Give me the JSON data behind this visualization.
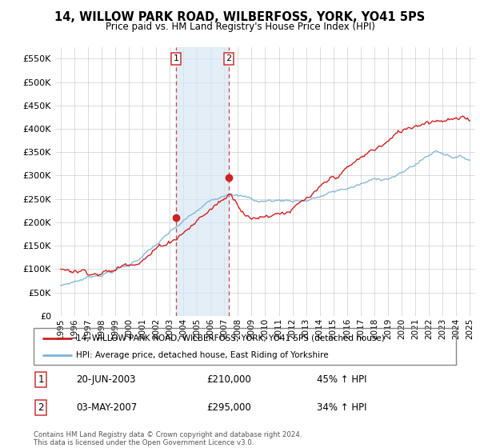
{
  "title": "14, WILLOW PARK ROAD, WILBERFOSS, YORK, YO41 5PS",
  "subtitle": "Price paid vs. HM Land Registry's House Price Index (HPI)",
  "legend_line1": "14, WILLOW PARK ROAD, WILBERFOSS, YORK, YO41 5PS (detached house)",
  "legend_line2": "HPI: Average price, detached house, East Riding of Yorkshire",
  "transaction1_date": "20-JUN-2003",
  "transaction1_price": "£210,000",
  "transaction1_hpi": "45% ↑ HPI",
  "transaction2_date": "03-MAY-2007",
  "transaction2_price": "£295,000",
  "transaction2_hpi": "34% ↑ HPI",
  "footer": "Contains HM Land Registry data © Crown copyright and database right 2024.\nThis data is licensed under the Open Government Licence v3.0.",
  "hpi_color": "#7ab3d4",
  "price_color": "#cc2222",
  "highlight_color": "#d8e8f5",
  "highlight_alpha": 0.7,
  "transaction1_x": 2003.47,
  "transaction2_x": 2007.34,
  "transaction1_y": 210000,
  "transaction2_y": 295000,
  "ylim": [
    0,
    575000
  ],
  "xlim_start": 1994.6,
  "xlim_end": 2025.4,
  "yticks": [
    0,
    50000,
    100000,
    150000,
    200000,
    250000,
    300000,
    350000,
    400000,
    450000,
    500000,
    550000
  ],
  "xticks": [
    1995,
    1996,
    1997,
    1998,
    1999,
    2000,
    2001,
    2002,
    2003,
    2004,
    2005,
    2006,
    2007,
    2008,
    2009,
    2010,
    2011,
    2012,
    2013,
    2014,
    2015,
    2016,
    2017,
    2018,
    2019,
    2020,
    2021,
    2022,
    2023,
    2024,
    2025
  ]
}
